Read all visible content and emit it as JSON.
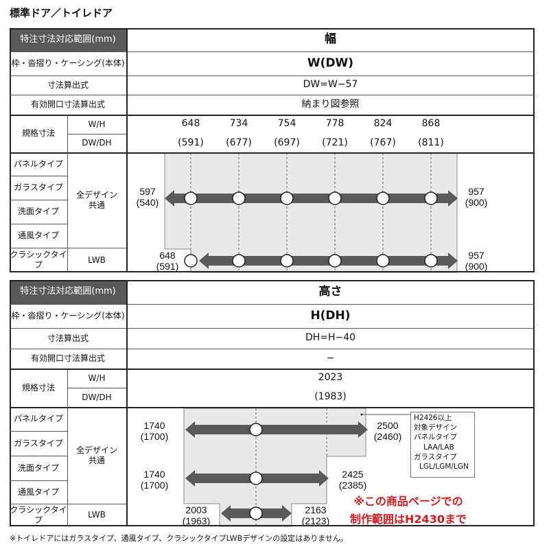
{
  "title": "標準ドア／トイレドア",
  "colors": {
    "header_bg": "#58595b",
    "range_fill": "#e8e8e8",
    "arrow": "#5a5a5a",
    "note_red": "#d7191c"
  },
  "width_table": {
    "header_label": "特注寸法対応範囲(mm)",
    "header_value": "幅",
    "rows": [
      {
        "label": "枠・沓摺り・ケーシング(本体)",
        "value": "W(DW)"
      },
      {
        "label": "寸法算出式",
        "value": "DW=W−57"
      },
      {
        "label": "有効開口寸法算出式",
        "value": "納まり図参照"
      }
    ],
    "spec_label": "規格寸法",
    "spec_rows": [
      {
        "label": "W/H",
        "values": [
          "648",
          "734",
          "754",
          "778",
          "824",
          "868"
        ]
      },
      {
        "label": "DW/DH",
        "values": [
          "(591)",
          "(677)",
          "(697)",
          "(721)",
          "(767)",
          "(811)"
        ]
      }
    ],
    "types": [
      "パネルタイプ",
      "ガラスタイプ",
      "洗面タイプ",
      "通風タイプ",
      "クラシックタイプ"
    ],
    "design_common": "全デザイン\n共通",
    "design_lwb": "LWB",
    "ranges": [
      {
        "min": "597",
        "min_dw": "(540)",
        "max": "957",
        "max_dw": "(900)"
      },
      {
        "min": "648",
        "min_dw": "(591)",
        "max": "957",
        "max_dw": "(900)"
      }
    ]
  },
  "height_table": {
    "header_label": "特注寸法対応範囲(mm)",
    "header_value": "高さ",
    "rows": [
      {
        "label": "枠・沓摺り・ケーシング(本体)",
        "value": "H(DH)"
      },
      {
        "label": "寸法算出式",
        "value": "DH=H−40"
      },
      {
        "label": "有効開口寸法算出式",
        "value": "−"
      }
    ],
    "spec_label": "規格寸法",
    "spec_rows": [
      {
        "label": "W/H",
        "values": [
          "2023"
        ]
      },
      {
        "label": "DW/DH",
        "values": [
          "(1983)"
        ]
      }
    ],
    "types": [
      "パネルタイプ",
      "ガラスタイプ",
      "洗面タイプ",
      "通風タイプ",
      "クラシックタイプ"
    ],
    "design_common": "全デザイン\n共通",
    "design_lwb": "LWB",
    "ranges": [
      {
        "min": "1740",
        "min_dh": "(1700)",
        "max": "2500",
        "max_dh": "(2460)"
      },
      {
        "min": "1740",
        "min_dh": "(1700)",
        "max": "2425",
        "max_dh": "(2385)"
      },
      {
        "min": "2003",
        "min_dh": "(1963)",
        "max": "2163",
        "max_dh": "(2123)"
      }
    ],
    "legend": [
      "H2426以上",
      "対象デザイン",
      "パネルタイプ",
      "LAA/LAB",
      "ガラスタイプ",
      "LGL/LGM/LGN"
    ],
    "red_note": [
      "※この商品ページでの",
      "制作範囲はH2430まで"
    ]
  },
  "footnote": "※トイレドアにはガラスタイプ、通風タイプ、クラシックタイプLWBデザインの設定はありません。"
}
